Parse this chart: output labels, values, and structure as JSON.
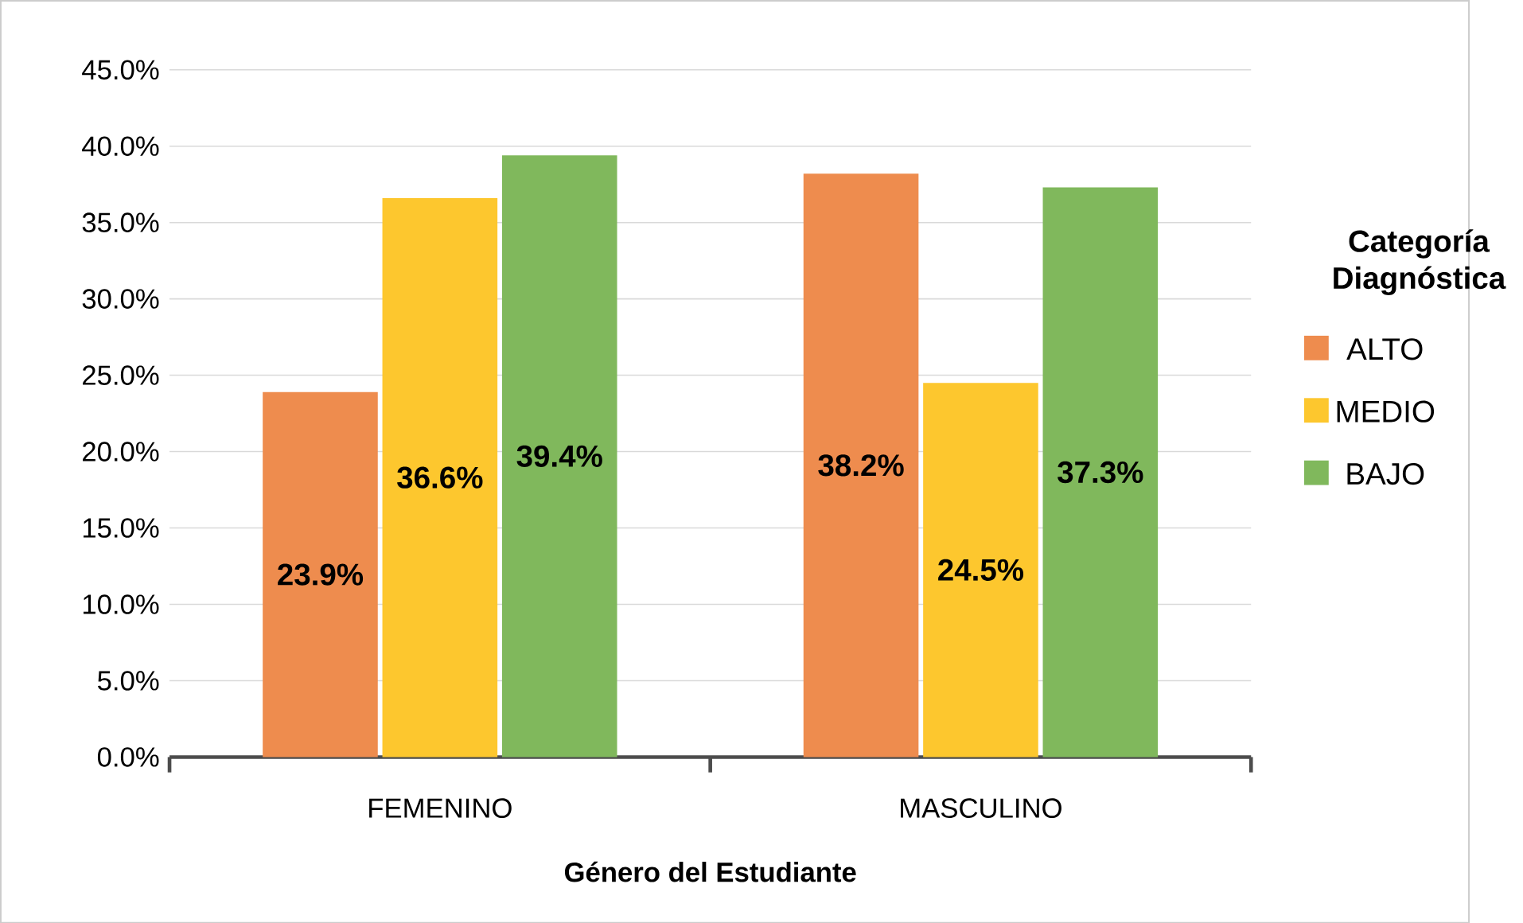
{
  "chart_data": {
    "type": "bar",
    "xlabel": "Género del Estudiante",
    "legend_title": "Categoría Diagnóstica",
    "categories": [
      "FEMENINO",
      "MASCULINO"
    ],
    "series": [
      {
        "name": "ALTO",
        "color": "#ee8c4e",
        "values": [
          23.9,
          38.2
        ],
        "value_labels": [
          "23.9%",
          "38.2%"
        ]
      },
      {
        "name": "MEDIO",
        "color": "#fdc72e",
        "values": [
          36.6,
          24.5
        ],
        "value_labels": [
          "36.6%",
          "24.5%"
        ]
      },
      {
        "name": "BAJO",
        "color": "#80b85c",
        "values": [
          39.4,
          37.3
        ],
        "value_labels": [
          "39.4%",
          "37.3%"
        ]
      }
    ],
    "ylim": [
      0,
      45
    ],
    "yticks": [
      {
        "value": 0,
        "label": "0.0%"
      },
      {
        "value": 5,
        "label": "5.0%"
      },
      {
        "value": 10,
        "label": "10.0%"
      },
      {
        "value": 15,
        "label": "15.0%"
      },
      {
        "value": 20,
        "label": "20.0%"
      },
      {
        "value": 25,
        "label": "25.0%"
      },
      {
        "value": 30,
        "label": "30.0%"
      },
      {
        "value": 35,
        "label": "35.0%"
      },
      {
        "value": 40,
        "label": "40.0%"
      },
      {
        "value": 45,
        "label": "45.0%"
      }
    ],
    "grid": "y",
    "legend": "right"
  }
}
